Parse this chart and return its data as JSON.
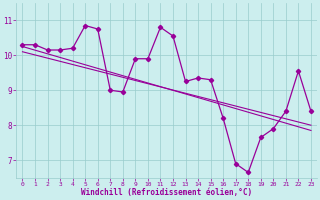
{
  "x_main": [
    0,
    1,
    2,
    3,
    4,
    5,
    6,
    7,
    8,
    9,
    10,
    11,
    12,
    13,
    14,
    15,
    16,
    17,
    18,
    19,
    20,
    21,
    22,
    23
  ],
  "y_main": [
    10.3,
    10.3,
    10.15,
    10.15,
    10.2,
    10.85,
    10.75,
    9.0,
    8.95,
    9.9,
    9.9,
    10.8,
    10.55,
    9.25,
    9.35,
    9.3,
    8.2,
    6.9,
    6.65,
    7.65,
    7.9,
    8.4,
    9.55,
    8.4
  ],
  "trend_x": [
    0,
    23
  ],
  "trend1_y": [
    10.25,
    7.85
  ],
  "trend2_x": [
    0,
    23
  ],
  "trend2_y": [
    10.1,
    8.0
  ],
  "color": "#990099",
  "bg_color": "#cceeee",
  "grid_color": "#99cccc",
  "xlabel": "Windchill (Refroidissement éolien,°C)",
  "ylim": [
    6.5,
    11.5
  ],
  "xlim": [
    -0.5,
    23.5
  ],
  "yticks": [
    7,
    8,
    9,
    10,
    11
  ],
  "xticks": [
    0,
    1,
    2,
    3,
    4,
    5,
    6,
    7,
    8,
    9,
    10,
    11,
    12,
    13,
    14,
    15,
    16,
    17,
    18,
    19,
    20,
    21,
    22,
    23
  ]
}
